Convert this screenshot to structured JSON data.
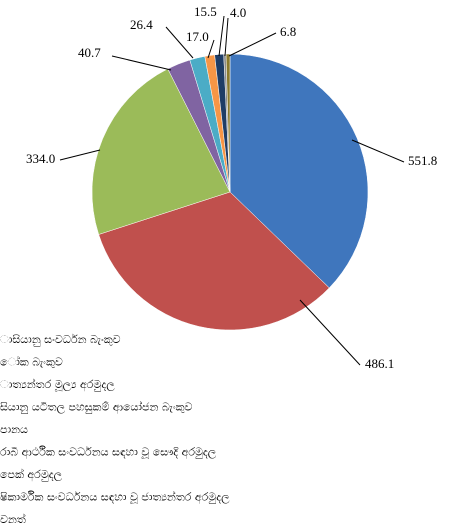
{
  "chart_data": {
    "type": "pie",
    "categories": [
      "ාසියානු සංවර්ධන බැංකුව",
      "ෝක බැංකුව",
      "ාත්‍යන්තර මූල්‍ය අරමුදල",
      "සියානු යටිතල පහසුකම් ආයෝජන බැංකුව",
      "පානය",
      "රාබි ආර්ථික සංවර්ධනය සඳහා වූ සෞදි අරමුදල",
      "පෙක් අරමුදල",
      "ෂිකාර්මික සංවර්ධනය සඳහා වූ ජාත්‍යන්තර අරමුදල",
      "වනත්"
    ],
    "values": [
      551.8,
      486.1,
      334.0,
      40.7,
      26.4,
      17.0,
      15.5,
      4.0,
      6.8
    ],
    "value_labels": [
      "551.8",
      "486.1",
      "334.0",
      "40.7",
      "26.4",
      "17.0",
      "15.5",
      "4.0",
      "6.8"
    ],
    "colors": [
      "#3f76bd",
      "#c0504d",
      "#9bbb59",
      "#8064a2",
      "#4bacc6",
      "#f79646",
      "#1f3d66",
      "#8c8c8c",
      "#8a7a2e"
    ]
  }
}
